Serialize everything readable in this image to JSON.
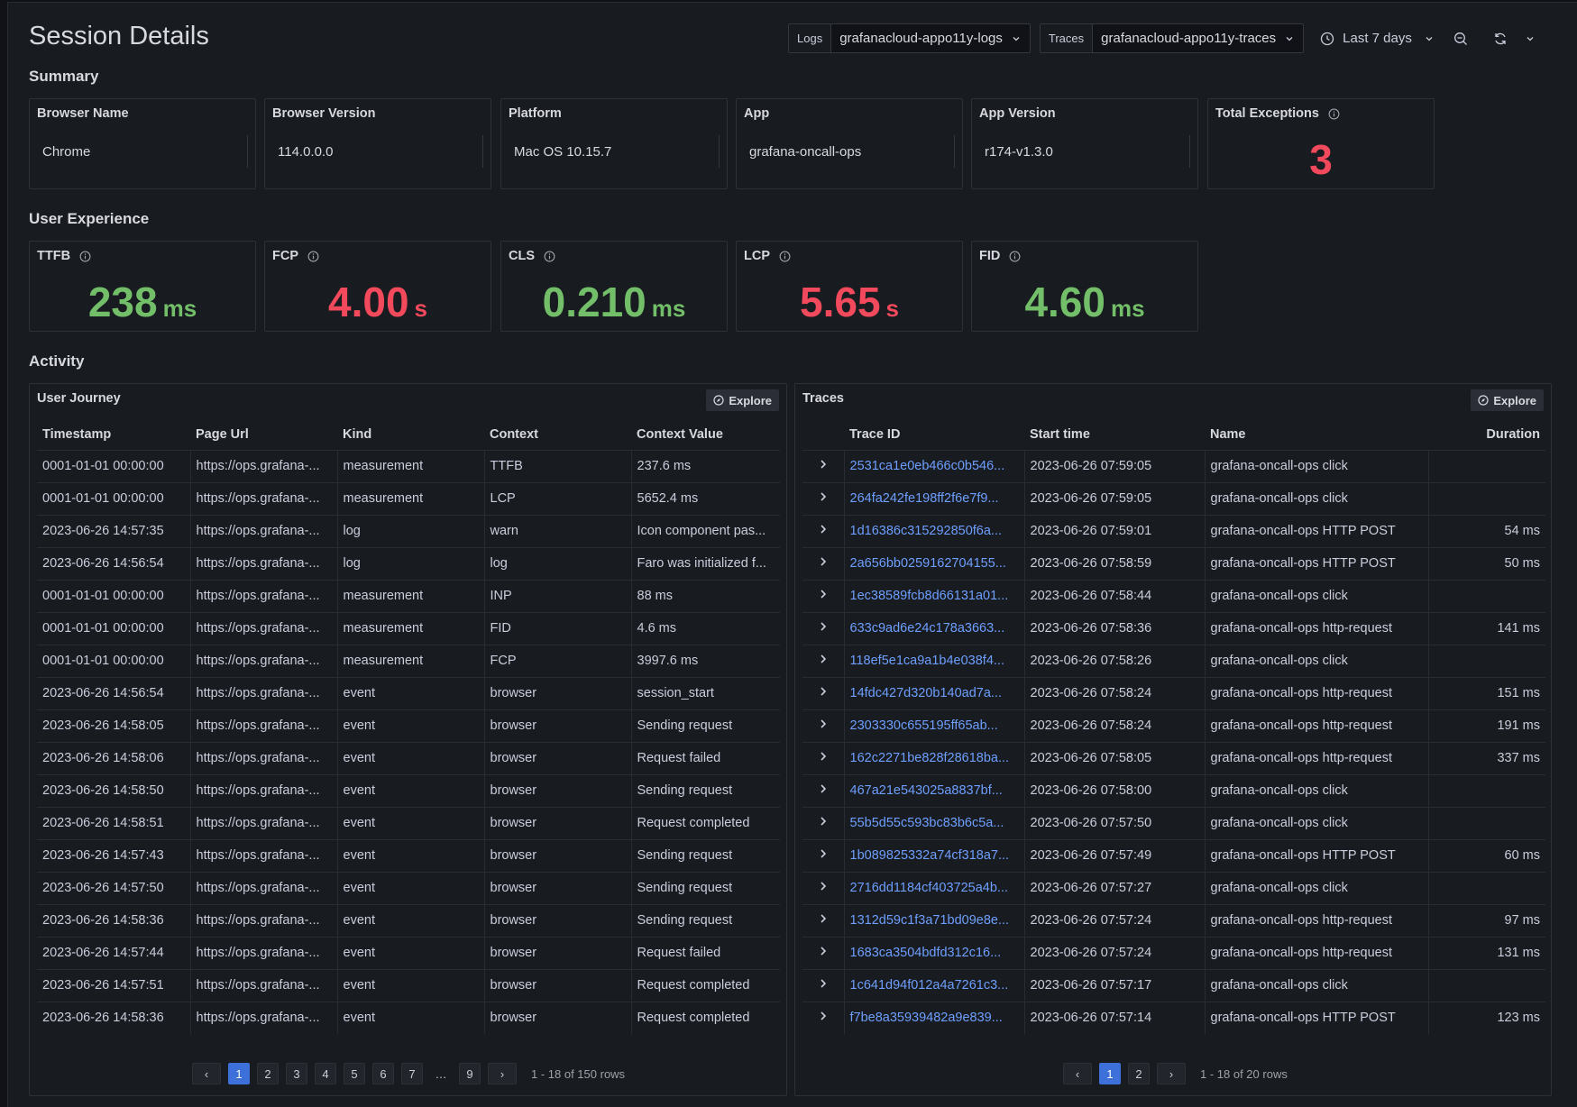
{
  "page": {
    "title": "Session Details"
  },
  "toolbar": {
    "logs_label": "Logs",
    "logs_value": "grafanacloud-appo11y-logs",
    "traces_label": "Traces",
    "traces_value": "grafanacloud-appo11y-traces",
    "time_range": "Last 7 days"
  },
  "sections": {
    "summary": "Summary",
    "ux": "User Experience",
    "activity": "Activity"
  },
  "summary": [
    {
      "title": "Browser Name",
      "value": "Chrome"
    },
    {
      "title": "Browser Version",
      "value": "114.0.0.0"
    },
    {
      "title": "Platform",
      "value": "Mac OS 10.15.7"
    },
    {
      "title": "App",
      "value": "grafana-oncall-ops"
    },
    {
      "title": "App Version",
      "value": "r174-v1.3.0"
    },
    {
      "title": "Total Exceptions",
      "value": "3",
      "color": "#f2495c"
    }
  ],
  "ux": [
    {
      "title": "TTFB",
      "value": "238",
      "unit": "ms",
      "color": "#73bf69"
    },
    {
      "title": "FCP",
      "value": "4.00",
      "unit": "s",
      "color": "#f2495c"
    },
    {
      "title": "CLS",
      "value": "0.210",
      "unit": "ms",
      "color": "#73bf69"
    },
    {
      "title": "LCP",
      "value": "5.65",
      "unit": "s",
      "color": "#f2495c"
    },
    {
      "title": "FID",
      "value": "4.60",
      "unit": "ms",
      "color": "#73bf69"
    }
  ],
  "journey": {
    "title": "User Journey",
    "explore": "Explore",
    "columns": [
      "Timestamp",
      "Page Url",
      "Kind",
      "Context",
      "Context Value"
    ],
    "rows": [
      [
        "0001-01-01 00:00:00",
        "https://ops.grafana-...",
        "measurement",
        "TTFB",
        "237.6 ms"
      ],
      [
        "0001-01-01 00:00:00",
        "https://ops.grafana-...",
        "measurement",
        "LCP",
        "5652.4 ms"
      ],
      [
        "2023-06-26 14:57:35",
        "https://ops.grafana-...",
        "log",
        "warn",
        "Icon component pas..."
      ],
      [
        "2023-06-26 14:56:54",
        "https://ops.grafana-...",
        "log",
        "log",
        "Faro was initialized f..."
      ],
      [
        "0001-01-01 00:00:00",
        "https://ops.grafana-...",
        "measurement",
        "INP",
        "88 ms"
      ],
      [
        "0001-01-01 00:00:00",
        "https://ops.grafana-...",
        "measurement",
        "FID",
        "4.6 ms"
      ],
      [
        "0001-01-01 00:00:00",
        "https://ops.grafana-...",
        "measurement",
        "FCP",
        "3997.6 ms"
      ],
      [
        "2023-06-26 14:56:54",
        "https://ops.grafana-...",
        "event",
        "browser",
        "session_start"
      ],
      [
        "2023-06-26 14:58:05",
        "https://ops.grafana-...",
        "event",
        "browser",
        "Sending request"
      ],
      [
        "2023-06-26 14:58:06",
        "https://ops.grafana-...",
        "event",
        "browser",
        "Request failed"
      ],
      [
        "2023-06-26 14:58:50",
        "https://ops.grafana-...",
        "event",
        "browser",
        "Sending request"
      ],
      [
        "2023-06-26 14:58:51",
        "https://ops.grafana-...",
        "event",
        "browser",
        "Request completed"
      ],
      [
        "2023-06-26 14:57:43",
        "https://ops.grafana-...",
        "event",
        "browser",
        "Sending request"
      ],
      [
        "2023-06-26 14:57:50",
        "https://ops.grafana-...",
        "event",
        "browser",
        "Sending request"
      ],
      [
        "2023-06-26 14:58:36",
        "https://ops.grafana-...",
        "event",
        "browser",
        "Sending request"
      ],
      [
        "2023-06-26 14:57:44",
        "https://ops.grafana-...",
        "event",
        "browser",
        "Request failed"
      ],
      [
        "2023-06-26 14:57:51",
        "https://ops.grafana-...",
        "event",
        "browser",
        "Request completed"
      ],
      [
        "2023-06-26 14:58:36",
        "https://ops.grafana-...",
        "event",
        "browser",
        "Request completed"
      ]
    ],
    "pages": [
      "1",
      "2",
      "3",
      "4",
      "5",
      "6",
      "7",
      "…",
      "9"
    ],
    "current_page": "1",
    "prev": "‹",
    "next": "›",
    "info": "1 - 18 of 150 rows"
  },
  "traces": {
    "title": "Traces",
    "explore": "Explore",
    "columns": [
      "",
      "Trace ID",
      "Start time",
      "Name",
      "Duration"
    ],
    "rows": [
      [
        "2531ca1e0eb466c0b546...",
        "2023-06-26 07:59:05",
        "grafana-oncall-ops click",
        ""
      ],
      [
        "264fa242fe198ff2f6e7f9...",
        "2023-06-26 07:59:05",
        "grafana-oncall-ops click",
        ""
      ],
      [
        "1d16386c315292850f6a...",
        "2023-06-26 07:59:01",
        "grafana-oncall-ops HTTP POST",
        "54 ms"
      ],
      [
        "2a656bb0259162704155...",
        "2023-06-26 07:58:59",
        "grafana-oncall-ops HTTP POST",
        "50 ms"
      ],
      [
        "1ec38589fcb8d66131a01...",
        "2023-06-26 07:58:44",
        "grafana-oncall-ops click",
        ""
      ],
      [
        "633c9ad6e24c178a3663...",
        "2023-06-26 07:58:36",
        "grafana-oncall-ops http-request",
        "141 ms"
      ],
      [
        "118ef5e1ca9a1b4e038f4...",
        "2023-06-26 07:58:26",
        "grafana-oncall-ops click",
        ""
      ],
      [
        "14fdc427d320b140ad7a...",
        "2023-06-26 07:58:24",
        "grafana-oncall-ops http-request",
        "151 ms"
      ],
      [
        "2303330c655195ff65ab...",
        "2023-06-26 07:58:24",
        "grafana-oncall-ops http-request",
        "191 ms"
      ],
      [
        "162c2271be828f28618ba...",
        "2023-06-26 07:58:05",
        "grafana-oncall-ops http-request",
        "337 ms"
      ],
      [
        "467a21e543025a8837bf...",
        "2023-06-26 07:58:00",
        "grafana-oncall-ops click",
        ""
      ],
      [
        "55b5d55c593bc83b6c5a...",
        "2023-06-26 07:57:50",
        "grafana-oncall-ops click",
        ""
      ],
      [
        "1b089825332a74cf318a7...",
        "2023-06-26 07:57:49",
        "grafana-oncall-ops HTTP POST",
        "60 ms"
      ],
      [
        "2716dd1184cf403725a4b...",
        "2023-06-26 07:57:27",
        "grafana-oncall-ops click",
        ""
      ],
      [
        "1312d59c1f3a71bd09e8e...",
        "2023-06-26 07:57:24",
        "grafana-oncall-ops http-request",
        "97 ms"
      ],
      [
        "1683ca3504bdfd312c16...",
        "2023-06-26 07:57:24",
        "grafana-oncall-ops http-request",
        "131 ms"
      ],
      [
        "1c641d94f012a4a7261c3...",
        "2023-06-26 07:57:17",
        "grafana-oncall-ops click",
        ""
      ],
      [
        "f7be8a35939482a9e839...",
        "2023-06-26 07:57:14",
        "grafana-oncall-ops HTTP POST",
        "123 ms"
      ]
    ],
    "pages": [
      "1",
      "2"
    ],
    "current_page": "1",
    "prev": "‹",
    "next": "›",
    "info": "1 - 18 of 20 rows"
  },
  "icons": {
    "info": "info-circle-icon",
    "clock": "clock-icon",
    "zoom_out": "zoom-out-icon",
    "refresh": "refresh-icon",
    "explore": "compass-icon",
    "expand": "chevron-right-icon"
  }
}
